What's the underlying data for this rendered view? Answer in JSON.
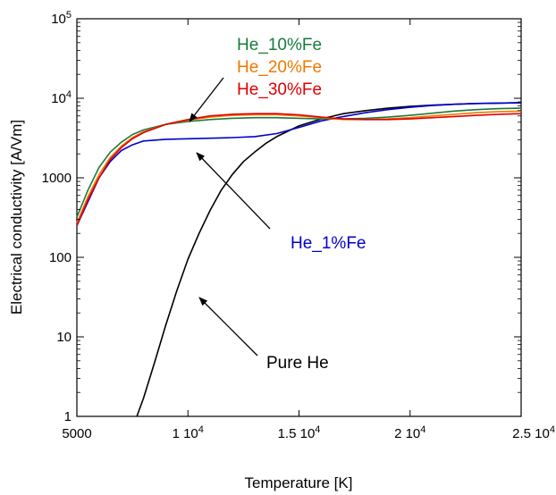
{
  "chart_data": {
    "type": "line",
    "title": "",
    "xlabel": "Temperature [K]",
    "ylabel": "Electrical conductivity [A/Vm]",
    "xlim": [
      5000,
      25000
    ],
    "ylim": [
      1,
      100000
    ],
    "yscale": "log",
    "grid": false,
    "legend": "none (series labeled by text annotations with arrows)",
    "x_ticks": [
      {
        "value": 5000,
        "label": "5000"
      },
      {
        "value": 10000,
        "base": "1 10",
        "exp": "4"
      },
      {
        "value": 15000,
        "base": "1.5 10",
        "exp": "4"
      },
      {
        "value": 20000,
        "base": "2 10",
        "exp": "4"
      },
      {
        "value": 25000,
        "base": "2.5 10",
        "exp": "4"
      }
    ],
    "y_ticks": [
      {
        "value": 1,
        "label": "1"
      },
      {
        "value": 10,
        "label": "10"
      },
      {
        "value": 100,
        "label": "100"
      },
      {
        "value": 1000,
        "label": "1000"
      },
      {
        "value": 10000,
        "base": "10",
        "exp": "4"
      },
      {
        "value": 100000,
        "base": "10",
        "exp": "5"
      }
    ],
    "series": [
      {
        "name": "Pure He",
        "color": "#000000",
        "x": [
          7700,
          8000,
          8500,
          9000,
          9500,
          10000,
          10500,
          11000,
          11500,
          12000,
          12500,
          13000,
          13500,
          14000,
          15000,
          16000,
          17000,
          18000,
          19000,
          20000,
          21000,
          22000,
          23000,
          24000,
          25000
        ],
        "y": [
          1,
          1.7,
          4.8,
          14,
          38,
          95,
          200,
          390,
          700,
          1100,
          1600,
          2100,
          2700,
          3300,
          4500,
          5500,
          6400,
          7000,
          7500,
          7900,
          8200,
          8400,
          8600,
          8700,
          8800
        ]
      },
      {
        "name": "He_1%Fe",
        "color": "#0000cc",
        "x": [
          5000,
          5500,
          6000,
          6500,
          7000,
          7500,
          8000,
          9000,
          10000,
          11000,
          12000,
          13000,
          14000,
          15000,
          16000,
          17000,
          18000,
          19000,
          20000,
          21000,
          22000,
          23000,
          24000,
          25000
        ],
        "y": [
          250,
          500,
          1000,
          1600,
          2200,
          2600,
          2900,
          3050,
          3100,
          3150,
          3200,
          3300,
          3600,
          4300,
          5200,
          5900,
          6600,
          7200,
          7700,
          8100,
          8400,
          8600,
          8700,
          8800
        ]
      },
      {
        "name": "He_10%Fe",
        "color": "#1a7a3c",
        "x": [
          5000,
          5500,
          6000,
          6500,
          7000,
          7500,
          8000,
          9000,
          10000,
          11000,
          12000,
          13000,
          14000,
          15000,
          16000,
          17000,
          18000,
          19000,
          20000,
          21000,
          22000,
          23000,
          24000,
          25000
        ],
        "y": [
          320,
          700,
          1350,
          2100,
          2800,
          3500,
          4000,
          4700,
          5100,
          5400,
          5600,
          5700,
          5700,
          5600,
          5500,
          5500,
          5600,
          5800,
          6100,
          6500,
          6900,
          7200,
          7400,
          7500
        ]
      },
      {
        "name": "He_20%Fe",
        "color": "#f07800",
        "x": [
          5000,
          5500,
          6000,
          6500,
          7000,
          7500,
          8000,
          9000,
          10000,
          11000,
          12000,
          13000,
          14000,
          15000,
          16000,
          17000,
          18000,
          19000,
          20000,
          21000,
          22000,
          23000,
          24000,
          25000
        ],
        "y": [
          270,
          580,
          1100,
          1800,
          2500,
          3200,
          3800,
          4700,
          5300,
          5800,
          6100,
          6200,
          6200,
          6000,
          5700,
          5400,
          5400,
          5500,
          5700,
          6000,
          6300,
          6600,
          6800,
          6900
        ]
      },
      {
        "name": "He_30%Fe",
        "color": "#e00000",
        "x": [
          5000,
          5500,
          6000,
          6500,
          7000,
          7500,
          8000,
          9000,
          10000,
          11000,
          12000,
          13000,
          14000,
          15000,
          16000,
          17000,
          18000,
          19000,
          20000,
          21000,
          22000,
          23000,
          24000,
          25000
        ],
        "y": [
          250,
          530,
          1000,
          1700,
          2400,
          3100,
          3700,
          4700,
          5400,
          6000,
          6300,
          6400,
          6400,
          6200,
          5800,
          5500,
          5400,
          5400,
          5500,
          5700,
          5900,
          6100,
          6300,
          6400
        ]
      }
    ],
    "annotations": [
      {
        "text": "He_10%Fe",
        "color": "#1a7a3c"
      },
      {
        "text": "He_20%Fe",
        "color": "#f07800"
      },
      {
        "text": "He_30%Fe",
        "color": "#e00000"
      },
      {
        "text": "He_1%Fe",
        "color": "#0000cc"
      },
      {
        "text": "Pure He",
        "color": "#000000"
      }
    ]
  }
}
